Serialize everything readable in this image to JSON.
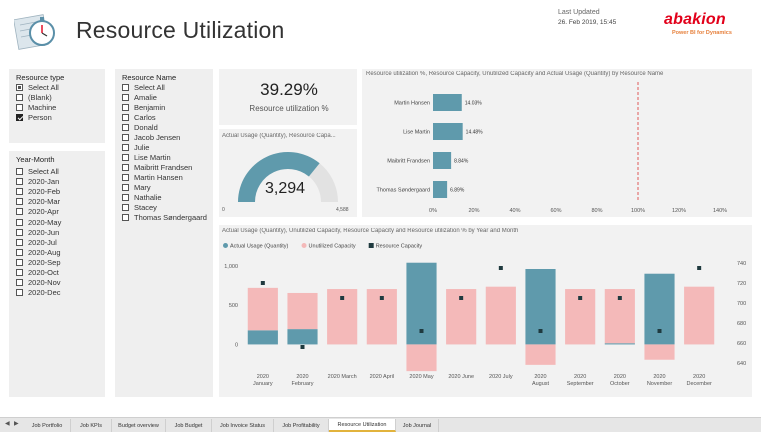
{
  "header": {
    "title": "Resource Utilization",
    "last_updated_label": "Last Updated",
    "last_updated_value": "26. Feb 2019, 15:45",
    "brand_name": "abakion",
    "brand_sub": "Power BI for Dynamics"
  },
  "resource_type": {
    "title": "Resource type",
    "options": [
      {
        "label": "Select All",
        "state": "partial"
      },
      {
        "label": "(Blank)",
        "state": "unchecked"
      },
      {
        "label": "Machine",
        "state": "unchecked"
      },
      {
        "label": "Person",
        "state": "checked"
      }
    ]
  },
  "year_month": {
    "title": "Year-Month",
    "options": [
      "Select All",
      "2020-Jan",
      "2020-Feb",
      "2020-Mar",
      "2020-Apr",
      "2020-May",
      "2020-Jun",
      "2020-Jul",
      "2020-Aug",
      "2020-Sep",
      "2020-Oct",
      "2020-Nov",
      "2020-Dec"
    ]
  },
  "resource_name": {
    "title": "Resource Name",
    "options": [
      "Select All",
      "Amalie",
      "Benjamin",
      "Carlos",
      "Donald",
      "Jacob Jensen",
      "Julie",
      "Lise Martin",
      "Maibritt Frandsen",
      "Martin Hansen",
      "Mary",
      "Nathalie",
      "Stacey",
      "Thomas Søndergaard"
    ]
  },
  "kpi": {
    "value": "39.29%",
    "label": "Resource utilization %"
  },
  "gauge": {
    "title": "Actual Usage (Quantity), Resource Capa...",
    "value_text": "3,294",
    "min_text": "0",
    "max_text": "4,588",
    "value": 3294,
    "max": 4588,
    "colors": {
      "fill": "#5f9aac",
      "track": "#e2e2e2"
    }
  },
  "colors": {
    "actual": "#5f9aac",
    "unutilized": "#f4b9b9",
    "capacity": "#1f3a3f",
    "target": "#e05a5a"
  },
  "chart_data": [
    {
      "type": "bar",
      "orientation": "horizontal",
      "title": "Resource utilization %, Resource Capacity, Unutilized Capacity and Actual Usage (Quantity) by Resource Name",
      "categories": [
        "Martin Hansen",
        "Lise Martin",
        "Maibritt Frandsen",
        "Thomas Søndergaard"
      ],
      "values": [
        14.03,
        14.48,
        8.84,
        6.89
      ],
      "value_labels": [
        "14.03%",
        "14.48%",
        "8.84%",
        "6.89%"
      ],
      "xlim": [
        0,
        140
      ],
      "xticks": [
        "0%",
        "20%",
        "40%",
        "60%",
        "80%",
        "100%",
        "120%",
        "140%"
      ],
      "reference_line": 100
    },
    {
      "type": "bar",
      "title": "Actual Usage (Quantity), Unutilized Capacity, Resource Capacity and Resource utilization % by Year and Month",
      "legend": [
        "Actual Usage (Quantity)",
        "Unutilized Capacity",
        "Resource Capacity"
      ],
      "categories": [
        "2020\nJanuary",
        "2020\nFebruary",
        "2020 March",
        "2020 April",
        "2020 May",
        "2020 June",
        "2020 July",
        "2020\nAugust",
        "2020\nSeptember",
        "2020\nOctober",
        "2020\nNovember",
        "2020\nDecember"
      ],
      "series": [
        {
          "name": "Actual Usage (Quantity)",
          "values": [
            180,
            195,
            0,
            0,
            1040,
            0,
            0,
            960,
            0,
            15,
            900,
            0
          ]
        },
        {
          "name": "Unutilized Capacity",
          "values": [
            540,
            460,
            705,
            705,
            -340,
            705,
            735,
            -260,
            705,
            690,
            -195,
            735
          ]
        },
        {
          "name": "Resource Capacity",
          "values": [
            720,
            656,
            705,
            705,
            672,
            705,
            735,
            672,
            705,
            705,
            672,
            735
          ]
        }
      ],
      "ylim_left": [
        -300,
        1100
      ],
      "yticks_left": [
        "0",
        "500",
        "1,000"
      ],
      "ylim_right": [
        635,
        745
      ],
      "yticks_right": [
        "640",
        "660",
        "680",
        "700",
        "720",
        "740"
      ]
    }
  ],
  "tabs": {
    "nav_prev": "◀",
    "nav_next": "▶",
    "items": [
      "Job Portfolio",
      "Job KPIs",
      "Budget overview",
      "Job Budget",
      "Job Invoice Status",
      "Job Profitability",
      "Resource Utilization",
      "Job Journal"
    ],
    "active": "Resource Utilization"
  }
}
